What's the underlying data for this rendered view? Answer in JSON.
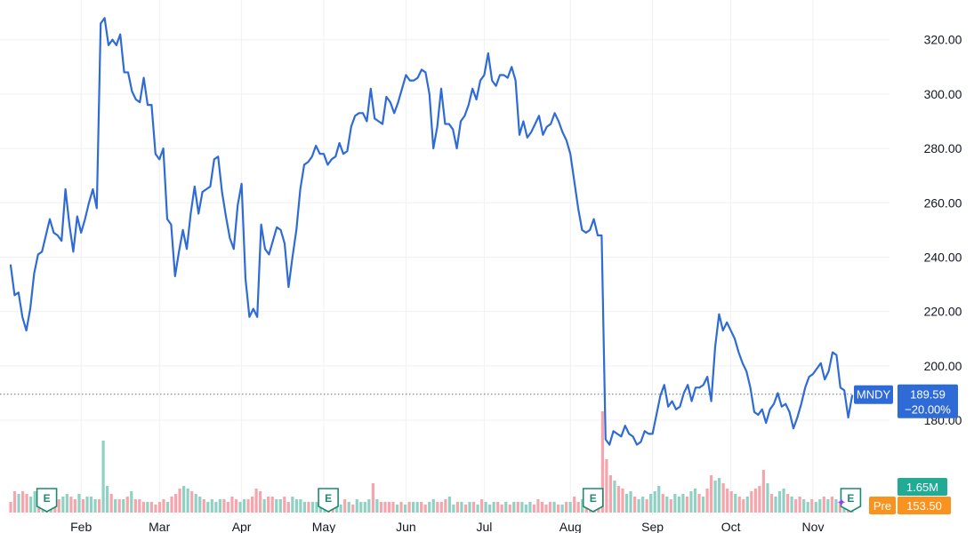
{
  "chart_data": {
    "type": "line",
    "ticker": "MNDY",
    "y_ticks": [
      "320.00",
      "300.00",
      "280.00",
      "260.00",
      "240.00",
      "220.00",
      "200.00",
      "180.00"
    ],
    "x_ticks": [
      "Feb",
      "Mar",
      "Apr",
      "May",
      "Jun",
      "Jul",
      "Aug",
      "Sep",
      "Oct",
      "Nov"
    ],
    "ylim": [
      164,
      332
    ],
    "grid": true,
    "line_color": "#2f6bd6",
    "last_price": "189.59",
    "last_change": "−20.00%",
    "volume_label": "1.65M",
    "premarket_label": "Pre",
    "premarket_price": "153.50",
    "earnings_marker": "E",
    "earnings_positions": [
      10.3,
      90.6,
      166.1,
      239.6
    ],
    "x_axis_note": "x values are trading-day index; month ticks at day positions listed in month_positions",
    "month_positions": [
      18,
      38,
      59,
      80,
      101,
      121,
      143,
      164,
      184,
      205
    ],
    "series": [
      {
        "values": [
          237,
          226,
          227,
          218,
          213,
          221,
          234,
          241,
          242,
          248,
          254,
          249,
          248,
          246,
          265,
          252,
          242,
          255,
          249,
          254,
          260,
          265,
          258,
          326,
          328,
          318,
          320,
          318,
          322,
          308,
          308,
          301,
          298,
          297,
          306,
          296,
          296,
          278,
          276,
          280,
          254,
          252,
          233,
          242,
          250,
          243,
          256,
          266,
          256,
          264,
          265,
          266,
          276,
          277,
          264,
          255,
          247,
          243,
          259,
          267,
          232,
          218,
          221,
          218,
          252,
          243,
          241,
          246,
          251,
          250,
          245,
          229,
          240,
          250,
          265,
          274,
          275,
          277,
          281,
          278,
          278,
          274,
          276,
          277,
          282,
          278,
          279,
          288,
          292,
          293,
          293,
          290,
          302,
          291,
          290,
          289,
          299,
          297,
          293,
          297,
          302,
          307,
          305,
          305,
          306,
          309,
          308,
          300,
          280,
          288,
          302,
          289,
          289,
          287,
          280,
          290,
          292,
          296,
          302,
          298,
          305,
          307,
          315,
          305,
          303,
          307,
          307,
          306,
          310,
          305,
          285,
          290,
          284,
          286,
          289,
          292,
          285,
          288,
          289,
          293,
          290,
          286,
          283,
          278,
          268,
          258,
          250,
          249,
          250,
          254,
          248,
          248,
          173,
          171,
          176,
          175,
          174,
          178,
          175,
          174,
          171,
          172,
          176,
          175,
          175,
          182,
          189,
          193,
          185,
          187,
          184,
          185,
          190,
          193,
          187,
          192,
          192,
          193,
          196,
          187,
          207,
          219,
          213,
          216,
          213,
          210,
          205,
          201,
          198,
          192,
          183,
          182,
          184,
          179,
          184,
          186,
          190,
          185,
          186,
          183,
          177,
          181,
          186,
          192,
          196,
          197,
          199,
          201,
          195,
          198,
          205,
          204,
          192,
          191,
          181,
          189
        ]
      }
    ],
    "volume": [
      {
        "v": 4,
        "c": "r"
      },
      {
        "v": 8,
        "c": "r"
      },
      {
        "v": 7,
        "c": "g"
      },
      {
        "v": 8,
        "c": "r"
      },
      {
        "v": 7,
        "c": "r"
      },
      {
        "v": 6,
        "c": "g"
      },
      {
        "v": 8,
        "c": "g"
      },
      {
        "v": 6,
        "c": "r"
      },
      {
        "v": 7,
        "c": "g"
      },
      {
        "v": 8,
        "c": "r"
      },
      {
        "v": 9,
        "c": "g"
      },
      {
        "v": 6,
        "c": "r"
      },
      {
        "v": 5,
        "c": "r"
      },
      {
        "v": 6,
        "c": "g"
      },
      {
        "v": 7,
        "c": "g"
      },
      {
        "v": 6,
        "c": "r"
      },
      {
        "v": 5,
        "c": "r"
      },
      {
        "v": 7,
        "c": "g"
      },
      {
        "v": 5,
        "c": "r"
      },
      {
        "v": 6,
        "c": "g"
      },
      {
        "v": 6,
        "c": "g"
      },
      {
        "v": 5,
        "c": "g"
      },
      {
        "v": 5,
        "c": "r"
      },
      {
        "v": 27,
        "c": "g"
      },
      {
        "v": 10,
        "c": "g"
      },
      {
        "v": 7,
        "c": "r"
      },
      {
        "v": 5,
        "c": "g"
      },
      {
        "v": 5,
        "c": "r"
      },
      {
        "v": 5,
        "c": "g"
      },
      {
        "v": 6,
        "c": "r"
      },
      {
        "v": 8,
        "c": "g"
      },
      {
        "v": 5,
        "c": "r"
      },
      {
        "v": 5,
        "c": "r"
      },
      {
        "v": 4,
        "c": "r"
      },
      {
        "v": 4,
        "c": "g"
      },
      {
        "v": 4,
        "c": "r"
      },
      {
        "v": 3,
        "c": "r"
      },
      {
        "v": 4,
        "c": "r"
      },
      {
        "v": 5,
        "c": "r"
      },
      {
        "v": 4,
        "c": "g"
      },
      {
        "v": 6,
        "c": "r"
      },
      {
        "v": 7,
        "c": "r"
      },
      {
        "v": 9,
        "c": "r"
      },
      {
        "v": 10,
        "c": "g"
      },
      {
        "v": 9,
        "c": "g"
      },
      {
        "v": 8,
        "c": "r"
      },
      {
        "v": 7,
        "c": "g"
      },
      {
        "v": 6,
        "c": "g"
      },
      {
        "v": 5,
        "c": "r"
      },
      {
        "v": 4,
        "c": "g"
      },
      {
        "v": 5,
        "c": "g"
      },
      {
        "v": 4,
        "c": "g"
      },
      {
        "v": 5,
        "c": "g"
      },
      {
        "v": 5,
        "c": "r"
      },
      {
        "v": 4,
        "c": "r"
      },
      {
        "v": 6,
        "c": "r"
      },
      {
        "v": 5,
        "c": "r"
      },
      {
        "v": 4,
        "c": "g"
      },
      {
        "v": 5,
        "c": "g"
      },
      {
        "v": 5,
        "c": "r"
      },
      {
        "v": 6,
        "c": "r"
      },
      {
        "v": 9,
        "c": "r"
      },
      {
        "v": 8,
        "c": "r"
      },
      {
        "v": 5,
        "c": "g"
      },
      {
        "v": 6,
        "c": "r"
      },
      {
        "v": 6,
        "c": "r"
      },
      {
        "v": 5,
        "c": "g"
      },
      {
        "v": 5,
        "c": "g"
      },
      {
        "v": 6,
        "c": "r"
      },
      {
        "v": 4,
        "c": "r"
      },
      {
        "v": 6,
        "c": "g"
      },
      {
        "v": 5,
        "c": "g"
      },
      {
        "v": 5,
        "c": "g"
      },
      {
        "v": 4,
        "c": "g"
      },
      {
        "v": 4,
        "c": "r"
      },
      {
        "v": 4,
        "c": "g"
      },
      {
        "v": 4,
        "c": "g"
      },
      {
        "v": 6,
        "c": "g"
      },
      {
        "v": 5,
        "c": "g"
      },
      {
        "v": 3,
        "c": "r"
      },
      {
        "v": 4,
        "c": "r"
      },
      {
        "v": 4,
        "c": "g"
      },
      {
        "v": 3,
        "c": "g"
      },
      {
        "v": 5,
        "c": "r"
      },
      {
        "v": 4,
        "c": "g"
      },
      {
        "v": 3,
        "c": "r"
      },
      {
        "v": 5,
        "c": "g"
      },
      {
        "v": 4,
        "c": "g"
      },
      {
        "v": 4,
        "c": "g"
      },
      {
        "v": 5,
        "c": "g"
      },
      {
        "v": 11,
        "c": "r"
      },
      {
        "v": 5,
        "c": "g"
      },
      {
        "v": 4,
        "c": "r"
      },
      {
        "v": 4,
        "c": "r"
      },
      {
        "v": 4,
        "c": "r"
      },
      {
        "v": 4,
        "c": "r"
      },
      {
        "v": 3,
        "c": "g"
      },
      {
        "v": 4,
        "c": "r"
      },
      {
        "v": 3,
        "c": "g"
      },
      {
        "v": 4,
        "c": "r"
      },
      {
        "v": 4,
        "c": "g"
      },
      {
        "v": 4,
        "c": "g"
      },
      {
        "v": 4,
        "c": "r"
      },
      {
        "v": 3,
        "c": "r"
      },
      {
        "v": 4,
        "c": "g"
      },
      {
        "v": 5,
        "c": "g"
      },
      {
        "v": 4,
        "c": "r"
      },
      {
        "v": 4,
        "c": "r"
      },
      {
        "v": 5,
        "c": "r"
      },
      {
        "v": 6,
        "c": "g"
      },
      {
        "v": 3,
        "c": "g"
      },
      {
        "v": 4,
        "c": "r"
      },
      {
        "v": 4,
        "c": "g"
      },
      {
        "v": 3,
        "c": "r"
      },
      {
        "v": 4,
        "c": "g"
      },
      {
        "v": 4,
        "c": "r"
      },
      {
        "v": 3,
        "c": "g"
      },
      {
        "v": 5,
        "c": "r"
      },
      {
        "v": 4,
        "c": "g"
      },
      {
        "v": 3,
        "c": "g"
      },
      {
        "v": 4,
        "c": "g"
      },
      {
        "v": 4,
        "c": "r"
      },
      {
        "v": 3,
        "c": "r"
      },
      {
        "v": 4,
        "c": "g"
      },
      {
        "v": 3,
        "c": "r"
      },
      {
        "v": 4,
        "c": "g"
      },
      {
        "v": 4,
        "c": "r"
      },
      {
        "v": 4,
        "c": "g"
      },
      {
        "v": 3,
        "c": "g"
      },
      {
        "v": 4,
        "c": "g"
      },
      {
        "v": 3,
        "c": "r"
      },
      {
        "v": 5,
        "c": "r"
      },
      {
        "v": 4,
        "c": "r"
      },
      {
        "v": 3,
        "c": "r"
      },
      {
        "v": 4,
        "c": "r"
      },
      {
        "v": 4,
        "c": "g"
      },
      {
        "v": 3,
        "c": "r"
      },
      {
        "v": 3,
        "c": "g"
      },
      {
        "v": 4,
        "c": "r"
      },
      {
        "v": 4,
        "c": "g"
      },
      {
        "v": 6,
        "c": "r"
      },
      {
        "v": 4,
        "c": "r"
      },
      {
        "v": 5,
        "c": "g"
      },
      {
        "v": 4,
        "c": "r"
      },
      {
        "v": 4,
        "c": "r"
      },
      {
        "v": 3,
        "c": "g"
      },
      {
        "v": 5,
        "c": "r"
      },
      {
        "v": 38,
        "c": "r"
      },
      {
        "v": 20,
        "c": "r"
      },
      {
        "v": 14,
        "c": "r"
      },
      {
        "v": 12,
        "c": "g"
      },
      {
        "v": 10,
        "c": "r"
      },
      {
        "v": 9,
        "c": "r"
      },
      {
        "v": 7,
        "c": "g"
      },
      {
        "v": 8,
        "c": "g"
      },
      {
        "v": 6,
        "c": "r"
      },
      {
        "v": 5,
        "c": "g"
      },
      {
        "v": 6,
        "c": "g"
      },
      {
        "v": 5,
        "c": "r"
      },
      {
        "v": 7,
        "c": "g"
      },
      {
        "v": 8,
        "c": "g"
      },
      {
        "v": 10,
        "c": "g"
      },
      {
        "v": 7,
        "c": "r"
      },
      {
        "v": 6,
        "c": "g"
      },
      {
        "v": 5,
        "c": "r"
      },
      {
        "v": 7,
        "c": "g"
      },
      {
        "v": 6,
        "c": "g"
      },
      {
        "v": 7,
        "c": "g"
      },
      {
        "v": 6,
        "c": "r"
      },
      {
        "v": 8,
        "c": "g"
      },
      {
        "v": 9,
        "c": "g"
      },
      {
        "v": 7,
        "c": "r"
      },
      {
        "v": 6,
        "c": "g"
      },
      {
        "v": 9,
        "c": "r"
      },
      {
        "v": 14,
        "c": "r"
      },
      {
        "v": 12,
        "c": "g"
      },
      {
        "v": 13,
        "c": "g"
      },
      {
        "v": 11,
        "c": "r"
      },
      {
        "v": 9,
        "c": "r"
      },
      {
        "v": 8,
        "c": "r"
      },
      {
        "v": 7,
        "c": "g"
      },
      {
        "v": 6,
        "c": "r"
      },
      {
        "v": 5,
        "c": "r"
      },
      {
        "v": 6,
        "c": "g"
      },
      {
        "v": 8,
        "c": "r"
      },
      {
        "v": 9,
        "c": "r"
      },
      {
        "v": 10,
        "c": "r"
      },
      {
        "v": 16,
        "c": "r"
      },
      {
        "v": 11,
        "c": "g"
      },
      {
        "v": 7,
        "c": "r"
      },
      {
        "v": 6,
        "c": "g"
      },
      {
        "v": 8,
        "c": "g"
      },
      {
        "v": 9,
        "c": "g"
      },
      {
        "v": 7,
        "c": "r"
      },
      {
        "v": 6,
        "c": "g"
      },
      {
        "v": 5,
        "c": "r"
      },
      {
        "v": 6,
        "c": "r"
      },
      {
        "v": 5,
        "c": "g"
      },
      {
        "v": 4,
        "c": "g"
      },
      {
        "v": 5,
        "c": "r"
      },
      {
        "v": 4,
        "c": "g"
      },
      {
        "v": 5,
        "c": "g"
      },
      {
        "v": 6,
        "c": "r"
      },
      {
        "v": 5,
        "c": "g"
      },
      {
        "v": 6,
        "c": "r"
      },
      {
        "v": 5,
        "c": "g"
      },
      {
        "v": 4,
        "c": "r"
      },
      {
        "v": 4,
        "c": "g"
      },
      {
        "v": 7,
        "c": "r"
      },
      {
        "v": 6,
        "c": "g"
      }
    ],
    "colors": {
      "up": "#8fd1c2",
      "down": "#f5a5ab",
      "grid": "#eef0f3",
      "axis_text": "#131722",
      "last_line": "#6b7280",
      "tag_blue": "#2f6bd6",
      "tag_teal": "#22ab94",
      "tag_orange": "#f7931e",
      "earnings_green": "#1d8a6f",
      "star_purple": "#8e44ff"
    }
  }
}
